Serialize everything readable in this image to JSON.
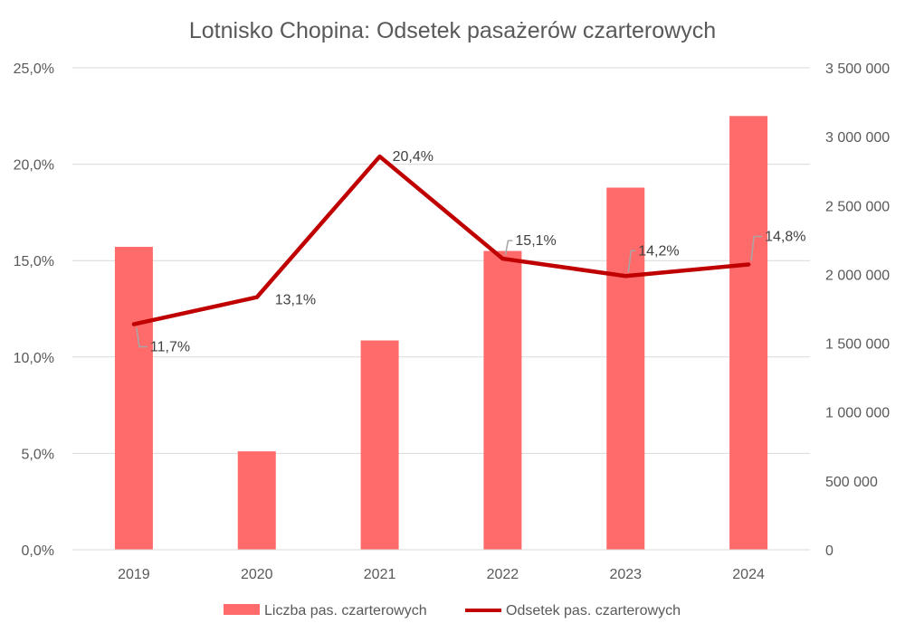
{
  "chart_data": {
    "type": "bar",
    "title": "Lotnisko Chopina: Odsetek pasażerów czarterowych",
    "categories": [
      "2019",
      "2020",
      "2021",
      "2022",
      "2023",
      "2024"
    ],
    "series": [
      {
        "name": "Liczba pas. czarterowych",
        "chart_type": "bar",
        "axis": "right",
        "color": "#ff6b6b",
        "values": [
          2200000,
          715000,
          1520000,
          2170000,
          2630000,
          3150000
        ]
      },
      {
        "name": "Odsetek pas. czarterowych",
        "chart_type": "line",
        "axis": "left",
        "color": "#c00000",
        "values": [
          11.7,
          13.1,
          20.4,
          15.1,
          14.2,
          14.8
        ],
        "labels": [
          "11,7%",
          "13,1%",
          "20,4%",
          "15,1%",
          "14,2%",
          "14,8%"
        ]
      }
    ],
    "y_left": {
      "min": 0,
      "max": 25,
      "ticks": [
        0,
        5,
        10,
        15,
        20,
        25
      ],
      "tick_labels": [
        "0,0%",
        "5,0%",
        "10,0%",
        "15,0%",
        "20,0%",
        "25,0%"
      ]
    },
    "y_right": {
      "min": 0,
      "max": 3500000,
      "ticks": [
        0,
        500000,
        1000000,
        1500000,
        2000000,
        2500000,
        3000000,
        3500000
      ],
      "tick_labels": [
        "0",
        "500 000",
        "1 000 000",
        "1 500 000",
        "2 000 000",
        "2 500 000",
        "3 000 000",
        "3 500 000"
      ]
    },
    "grid": true,
    "legend": "bottom"
  }
}
